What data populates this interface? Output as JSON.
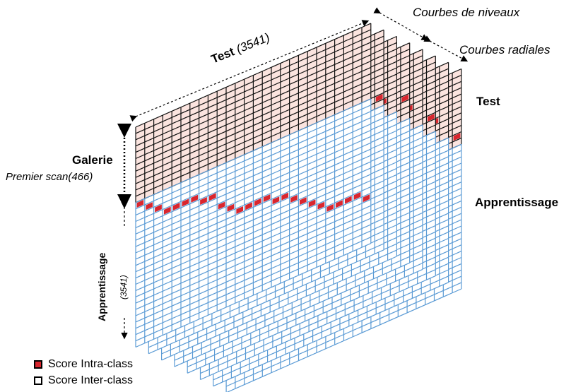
{
  "labels": {
    "test_top": "Test",
    "test_top_count": "(3541)",
    "courbes_niveaux": "Courbes de niveaux",
    "courbes_radiales": "Courbes radiales",
    "test_right": "Test",
    "apprentissage_right": "Apprentissage",
    "galerie": "Galerie",
    "premier_scan": "Premier scan(466)",
    "apprentissage_left": "Apprentissage",
    "apprentissage_left_count": "(3541)"
  },
  "legend": [
    {
      "label": "Score Intra-class",
      "color": "#d9262e"
    },
    {
      "label": "Score Inter-class",
      "color": "#ffffff"
    }
  ],
  "colors": {
    "test_fill": "#fbe4df",
    "test_line": "#111111",
    "train_fill": "#ffffff",
    "train_line": "#5b9bd5",
    "intra": "#d9262e"
  },
  "layer_count": 8,
  "cols_per_layer": 26,
  "test_rows": 12,
  "train_rows": 23
}
